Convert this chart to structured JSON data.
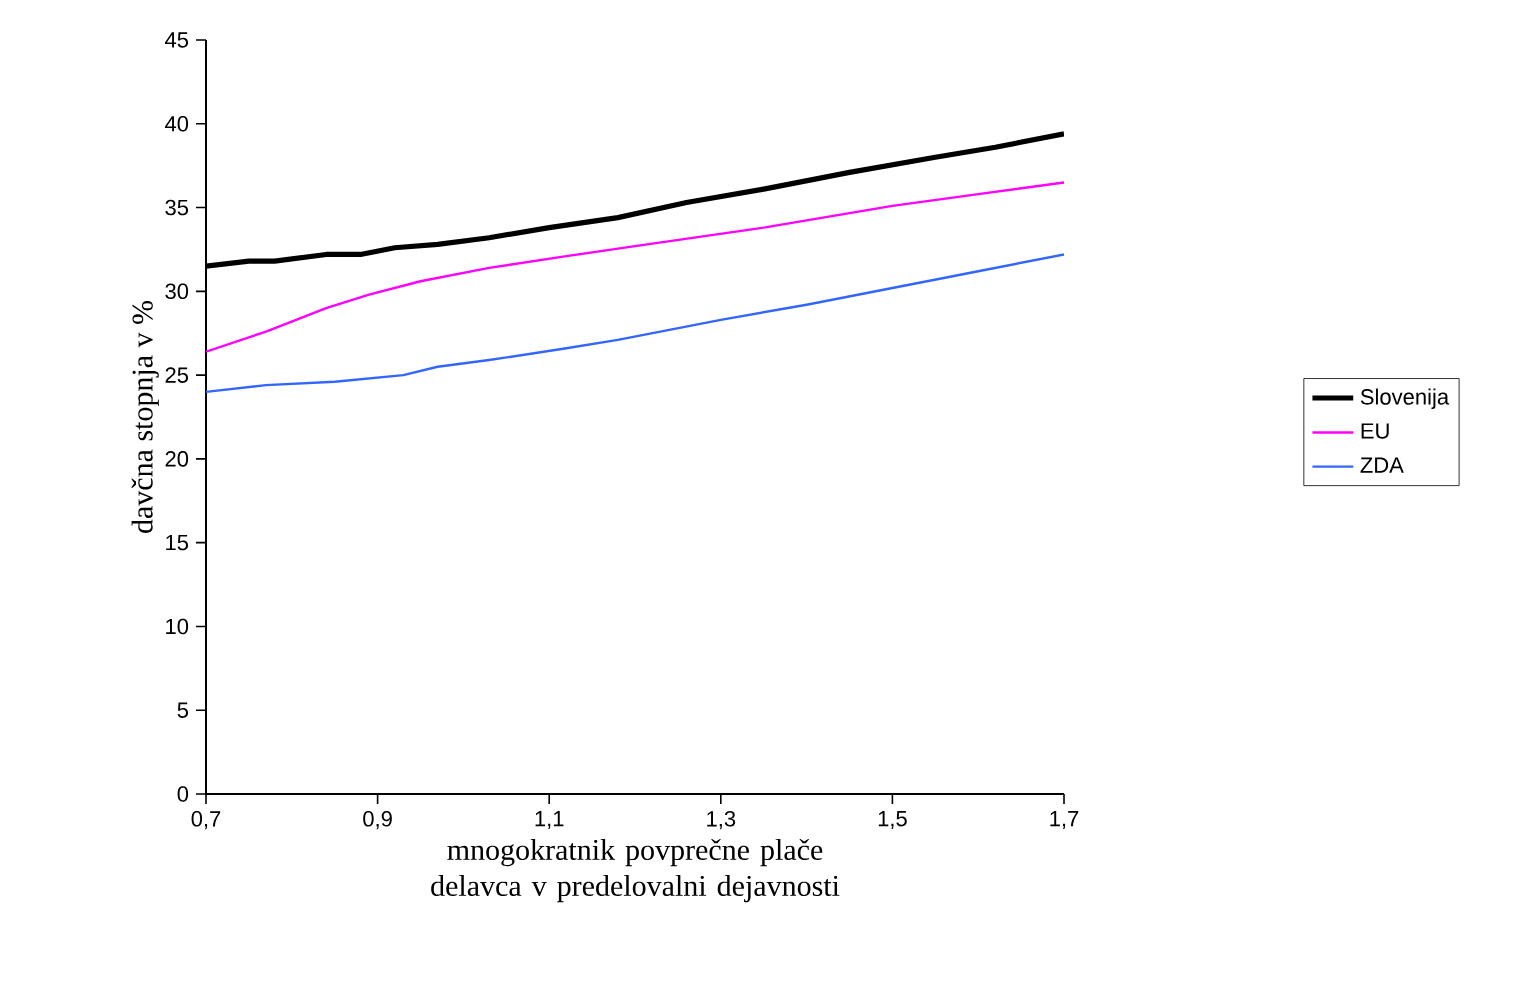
{
  "chart_data": {
    "type": "line",
    "xlabel": "mnogokratnik povprečne plače delavca v predelovalni dejavnosti",
    "ylabel": "davčna stopnja v %",
    "xlim": [
      0.7,
      1.7
    ],
    "xticks": [
      {
        "value": 0.7,
        "label": "0,7"
      },
      {
        "value": 0.9,
        "label": "0,9"
      },
      {
        "value": 1.1,
        "label": "1,1"
      },
      {
        "value": 1.3,
        "label": "1,3"
      },
      {
        "value": 1.5,
        "label": "1,5"
      },
      {
        "value": 1.7,
        "label": "1,7"
      }
    ],
    "ylim": [
      0,
      45
    ],
    "yticks": [
      0,
      5,
      10,
      15,
      20,
      25,
      30,
      35,
      40,
      45
    ],
    "grid": false,
    "legend": "right",
    "marker": "none",
    "line_style": "solid",
    "series": [
      {
        "name": "Slovenija",
        "color": "#000000",
        "x": [
          0.7,
          0.75,
          0.78,
          0.84,
          0.88,
          0.92,
          0.97,
          1.03,
          1.1,
          1.18,
          1.26,
          1.35,
          1.45,
          1.55,
          1.62,
          1.7
        ],
        "values": [
          31.5,
          31.8,
          31.8,
          32.2,
          32.2,
          32.6,
          32.8,
          33.2,
          33.8,
          34.4,
          35.3,
          36.1,
          37.1,
          38.0,
          38.6,
          39.4
        ]
      },
      {
        "name": "EU",
        "color": "#ff00ff",
        "x": [
          0.7,
          0.77,
          0.84,
          0.89,
          0.95,
          1.03,
          1.12,
          1.2,
          1.35,
          1.5,
          1.6,
          1.7
        ],
        "values": [
          26.4,
          27.6,
          29.0,
          29.8,
          30.6,
          31.4,
          32.1,
          32.7,
          33.8,
          35.1,
          35.8,
          36.5
        ]
      },
      {
        "name": "ZDA",
        "color": "#3366ff",
        "x": [
          0.7,
          0.77,
          0.85,
          0.93,
          0.97,
          1.03,
          1.12,
          1.18,
          1.3,
          1.4,
          1.5,
          1.6,
          1.7
        ],
        "values": [
          24.0,
          24.4,
          24.6,
          25.0,
          25.5,
          25.9,
          26.6,
          27.1,
          28.3,
          29.2,
          30.2,
          31.2,
          32.2
        ]
      }
    ]
  }
}
